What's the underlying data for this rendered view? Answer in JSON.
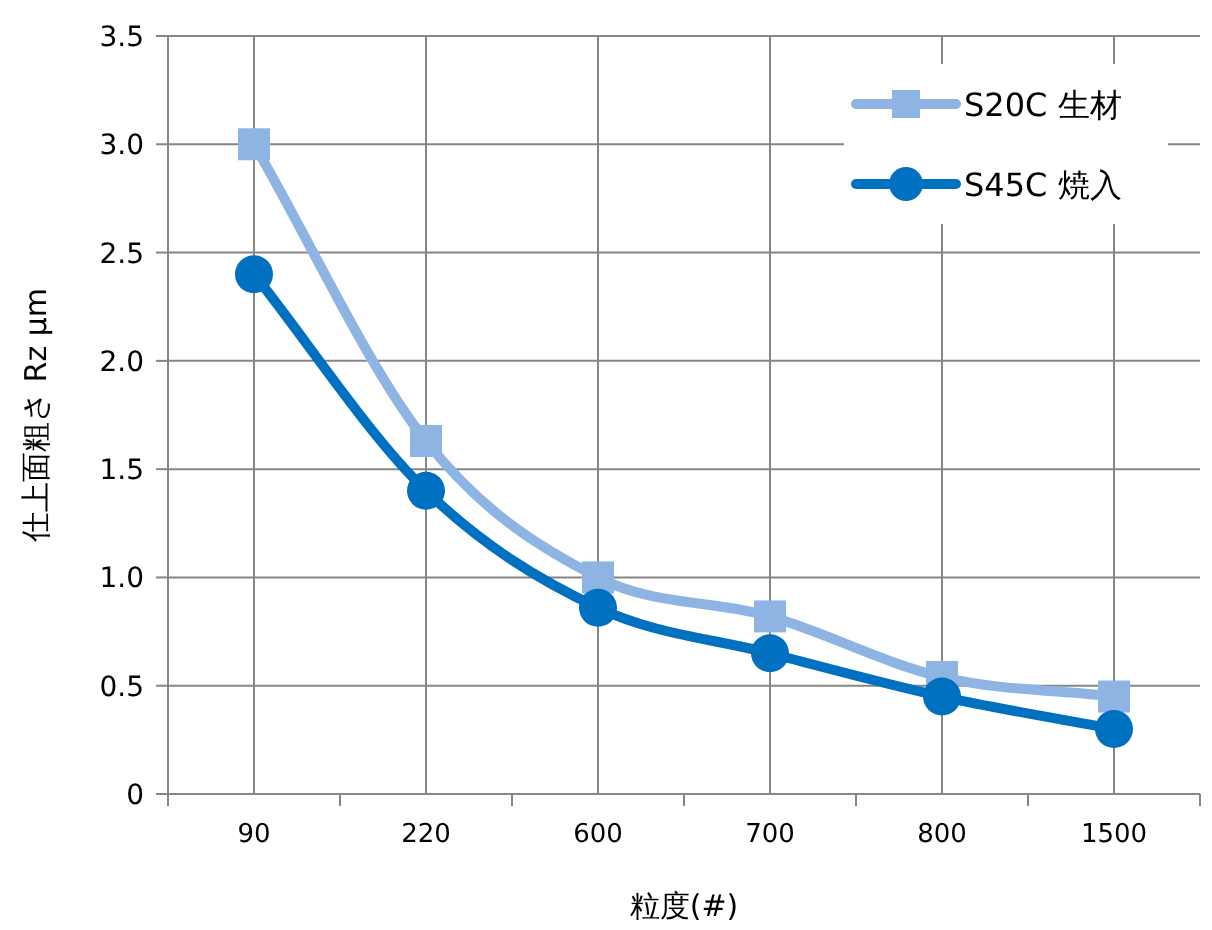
{
  "chart_data": {
    "type": "line",
    "xlabel": "粒度(#)",
    "ylabel": "仕上面粗さ Rz  μm",
    "categories": [
      "90",
      "220",
      "600",
      "700",
      "800",
      "1500"
    ],
    "series": [
      {
        "name": "S20C 生材",
        "color": "#8eb4e3",
        "marker": "square",
        "values": [
          3.0,
          1.63,
          1.0,
          0.82,
          0.54,
          0.45
        ]
      },
      {
        "name": "S45C 焼入",
        "color": "#0070c0",
        "marker": "circle",
        "values": [
          2.4,
          1.4,
          0.86,
          0.65,
          0.45,
          0.3
        ]
      }
    ],
    "ylim": [
      0,
      3.5
    ],
    "yticks": [
      0,
      {
        "value": 0.5,
        "label": "0.5"
      },
      {
        "value": 1,
        "label": "1.0"
      },
      {
        "value": 1.5,
        "label": "1.5"
      },
      {
        "value": 2,
        "label": "2.0"
      },
      {
        "value": 2.5,
        "label": "2.5"
      },
      {
        "value": 3,
        "label": "3.0"
      },
      {
        "value": 3.5,
        "label": "3.5"
      }
    ],
    "grid": true,
    "legend": "top right"
  }
}
